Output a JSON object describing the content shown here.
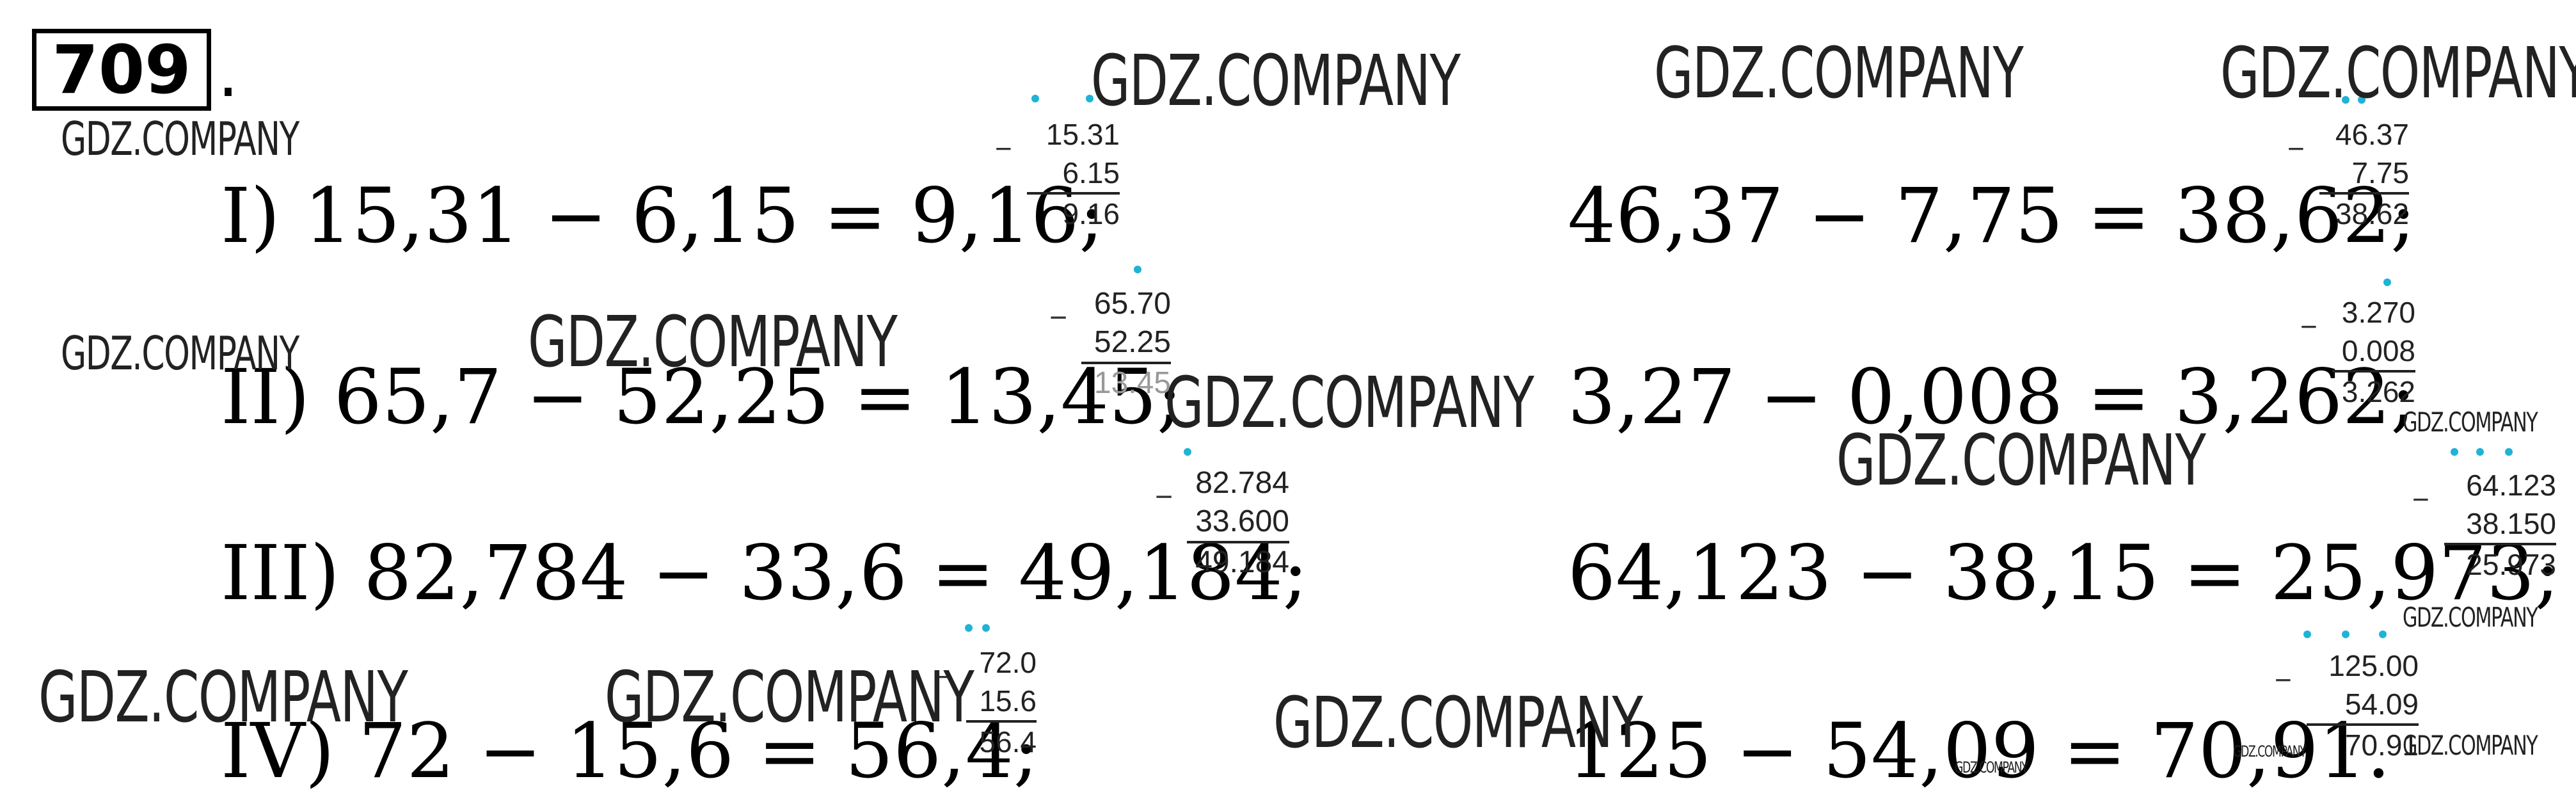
{
  "task_number": "709",
  "equations": [
    {
      "id": "eq-1",
      "text": "I) 15,31 − 6,15 = 9,16;"
    },
    {
      "id": "eq-2",
      "text": "II) 65,7 − 52,25 = 13,45;"
    },
    {
      "id": "eq-3",
      "text": "III) 82,784 − 33,6 = 49,184;"
    },
    {
      "id": "eq-4",
      "text": "IV) 72 − 15,6 = 56,4;"
    },
    {
      "id": "eq-5",
      "text": "46,37 − 7,75 = 38,62;"
    },
    {
      "id": "eq-6",
      "text": "3,27 − 0,008 = 3,262;"
    },
    {
      "id": "eq-7",
      "text": "64,123 − 38,15 = 25,973;"
    },
    {
      "id": "eq-8",
      "text": "125 − 54,09 = 70,91."
    }
  ],
  "columns": [
    {
      "id": "col-1",
      "top": "15.31",
      "bottom": "6.15",
      "result": "9.16"
    },
    {
      "id": "col-2",
      "top": "65.70",
      "bottom": "52.25",
      "result": "13.45"
    },
    {
      "id": "col-3",
      "top": "82.784",
      "bottom": "33.600",
      "result": "49.184"
    },
    {
      "id": "col-4",
      "top": "72.0",
      "bottom": "15.6",
      "result": "56.4"
    },
    {
      "id": "col-5",
      "top": "46.37",
      "bottom": "7.75",
      "result": "38.62"
    },
    {
      "id": "col-6",
      "top": "3.270",
      "bottom": "0.008",
      "result": "3.262"
    },
    {
      "id": "col-7",
      "top": "64.123",
      "bottom": "38.150",
      "result": "25.973"
    },
    {
      "id": "col-8",
      "top": "125.00",
      "bottom": "54.09",
      "result": "70.91"
    }
  ],
  "minus_sign": "−",
  "watermark": "GDZ.COMPANY"
}
